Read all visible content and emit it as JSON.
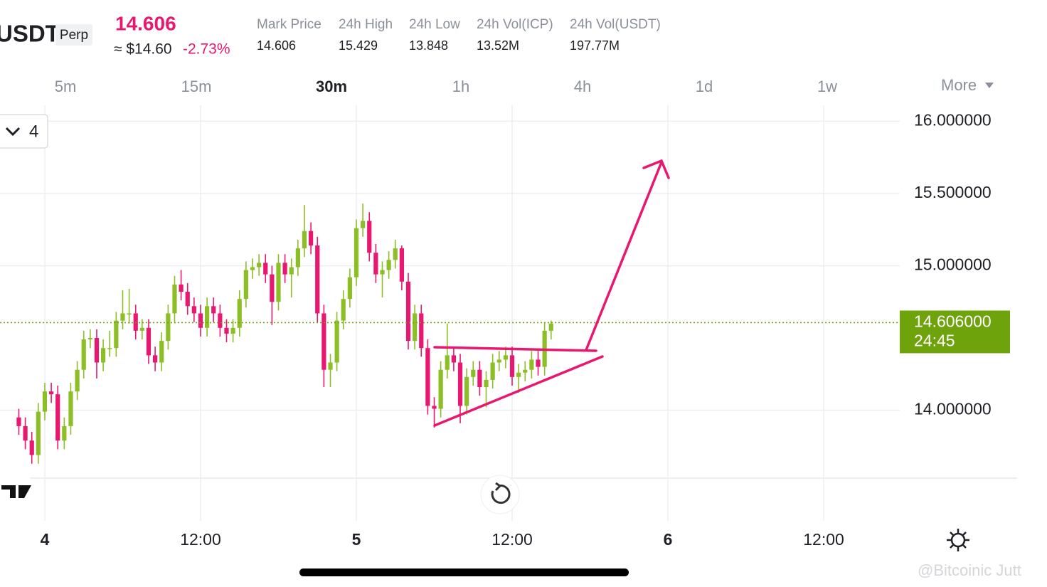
{
  "header": {
    "symbol": "USDT",
    "contract": "Perp",
    "last_price": "14.606",
    "approx_price": "≈ $14.60",
    "change": "-2.73%",
    "stats": [
      {
        "label": "Mark Price",
        "value": "14.606"
      },
      {
        "label": "24h High",
        "value": "15.429"
      },
      {
        "label": "24h Low",
        "value": "13.848"
      },
      {
        "label": "24h Vol(ICP)",
        "value": "13.52M"
      },
      {
        "label": "24h Vol(USDT)",
        "value": "197.77M"
      }
    ]
  },
  "timeframes": [
    "5m",
    "15m",
    "30m",
    "1h",
    "4h",
    "1d",
    "1w"
  ],
  "selected_timeframe": "30m",
  "more": "More",
  "indicator_count": "4",
  "watermark": "@Bitcoinic Jutt",
  "chart_data": {
    "type": "candlestick",
    "x": [
      -2,
      -1.5,
      -1,
      -0.5,
      0,
      0.5,
      1,
      1.5,
      2,
      2.5,
      3,
      3.5,
      4,
      4.5,
      5,
      5.5,
      6,
      6.5,
      7,
      7.5,
      8,
      8.5,
      9,
      9.5,
      10,
      10.5,
      11,
      11.5,
      12,
      12.5,
      13,
      13.5,
      14,
      14.5,
      15,
      15.5,
      16,
      16.5,
      17,
      17.5,
      18,
      18.5,
      19,
      19.5,
      20,
      20.5,
      21,
      21.5,
      22,
      22.5,
      23,
      23.5,
      24,
      24.5,
      25,
      25.5,
      26,
      26.5,
      27,
      27.5,
      28,
      28.5,
      29,
      29.5,
      30,
      30.5,
      31,
      31.5,
      32,
      32.5,
      33,
      33.5,
      34,
      34.5,
      35,
      35.5,
      36,
      36.5,
      37,
      37.5,
      38,
      38.5,
      39
    ],
    "open": [
      13.95,
      13.89,
      13.79,
      13.69,
      13.99,
      14.13,
      14.11,
      13.79,
      13.89,
      14.13,
      14.28,
      14.49,
      14.5,
      14.33,
      14.43,
      14.43,
      14.62,
      14.67,
      14.67,
      14.55,
      14.57,
      14.38,
      14.33,
      14.48,
      14.67,
      14.87,
      14.82,
      14.72,
      14.67,
      14.57,
      14.72,
      14.67,
      14.57,
      14.53,
      14.57,
      14.77,
      14.97,
      14.99,
      15.02,
      14.94,
      14.75,
      15.02,
      14.94,
      14.99,
      15.12,
      15.24,
      15.14,
      14.67,
      14.28,
      14.33,
      14.62,
      14.77,
      14.92,
      15.26,
      15.31,
      15.09,
      14.94,
      14.97,
      15.04,
      15.12,
      14.89,
      14.48,
      14.67,
      14.43,
      14.03,
      14.01,
      14.28,
      14.38,
      14.33,
      14.03,
      14.23,
      14.28,
      14.16,
      14.21,
      14.33,
      14.35,
      14.38,
      14.23,
      14.26,
      14.28,
      14.35,
      14.3,
      14.55
    ],
    "high": [
      14.01,
      13.95,
      13.85,
      14.05,
      14.19,
      14.19,
      14.17,
      13.95,
      14.19,
      14.34,
      14.55,
      14.56,
      14.56,
      14.49,
      14.55,
      14.68,
      14.83,
      14.84,
      14.73,
      14.63,
      14.63,
      14.44,
      14.54,
      14.73,
      14.93,
      14.97,
      14.88,
      14.78,
      14.73,
      14.78,
      14.78,
      14.73,
      14.63,
      14.63,
      14.83,
      15.03,
      15.05,
      15.08,
      15.08,
      15.0,
      15.08,
      15.08,
      15.05,
      15.18,
      15.42,
      15.3,
      15.2,
      14.73,
      14.39,
      14.68,
      14.83,
      14.98,
      15.32,
      15.43,
      15.37,
      15.15,
      15.03,
      15.1,
      15.18,
      15.14,
      14.95,
      14.73,
      14.73,
      14.49,
      14.09,
      14.34,
      14.6,
      14.44,
      14.39,
      14.29,
      14.34,
      14.34,
      14.27,
      14.39,
      14.41,
      14.44,
      14.44,
      14.32,
      14.34,
      14.41,
      14.41,
      14.61,
      14.62
    ],
    "low": [
      13.83,
      13.73,
      13.63,
      13.63,
      13.93,
      14.05,
      13.73,
      13.73,
      13.83,
      14.07,
      14.22,
      14.43,
      14.22,
      14.27,
      14.37,
      14.37,
      14.56,
      14.6,
      14.49,
      14.49,
      14.32,
      14.27,
      14.27,
      14.42,
      14.61,
      14.76,
      14.66,
      14.61,
      14.51,
      14.51,
      14.61,
      14.51,
      14.47,
      14.47,
      14.51,
      14.71,
      14.91,
      14.93,
      14.88,
      14.59,
      14.69,
      14.88,
      14.78,
      14.93,
      15.06,
      15.08,
      14.61,
      14.16,
      14.16,
      14.27,
      14.56,
      14.71,
      14.86,
      15.2,
      15.03,
      14.88,
      14.78,
      14.91,
      14.98,
      14.83,
      14.42,
      14.42,
      14.37,
      13.97,
      13.88,
      13.95,
      14.22,
      14.27,
      13.91,
      13.97,
      14.17,
      14.1,
      14.02,
      14.15,
      14.27,
      14.29,
      14.17,
      14.12,
      14.2,
      14.22,
      14.24,
      14.24,
      14.49
    ],
    "close": [
      13.89,
      13.79,
      13.69,
      13.99,
      14.13,
      14.11,
      13.79,
      13.89,
      14.13,
      14.28,
      14.49,
      14.5,
      14.33,
      14.43,
      14.43,
      14.62,
      14.67,
      14.67,
      14.55,
      14.57,
      14.38,
      14.33,
      14.48,
      14.67,
      14.87,
      14.82,
      14.72,
      14.67,
      14.57,
      14.72,
      14.67,
      14.57,
      14.53,
      14.57,
      14.77,
      14.97,
      14.99,
      15.02,
      14.94,
      14.75,
      15.02,
      14.94,
      14.99,
      15.12,
      15.24,
      15.14,
      14.67,
      14.28,
      14.33,
      14.62,
      14.77,
      14.92,
      15.26,
      15.31,
      15.09,
      14.94,
      14.97,
      15.04,
      15.12,
      14.89,
      14.48,
      14.67,
      14.43,
      14.03,
      14.01,
      14.28,
      14.38,
      14.33,
      14.03,
      14.23,
      14.28,
      14.16,
      14.21,
      14.33,
      14.35,
      14.38,
      14.23,
      14.26,
      14.28,
      14.35,
      14.3,
      14.55,
      14.6
    ],
    "up_color": "#8cbf26",
    "down_color": "#e8176f",
    "xlim": [
      -3.45,
      74.9
    ],
    "ylim": [
      13.53,
      16.11
    ],
    "xticks": [
      {
        "value": 0,
        "label": "4"
      },
      {
        "value": 12,
        "label": "12:00"
      },
      {
        "value": 24,
        "label": "5"
      },
      {
        "value": 36,
        "label": "12:00"
      },
      {
        "value": 48,
        "label": "6"
      },
      {
        "value": 60,
        "label": "12:00"
      }
    ],
    "yticks": [
      {
        "value": 16,
        "label": "16.000000"
      },
      {
        "value": 15.5,
        "label": "15.500000"
      },
      {
        "value": 15,
        "label": "15.000000"
      },
      {
        "value": 14,
        "label": "14.000000"
      }
    ],
    "price_line": {
      "value": 14.606,
      "label": "14.606000",
      "color": "#6ea30c"
    },
    "countdown": "24:45",
    "grid": true
  }
}
